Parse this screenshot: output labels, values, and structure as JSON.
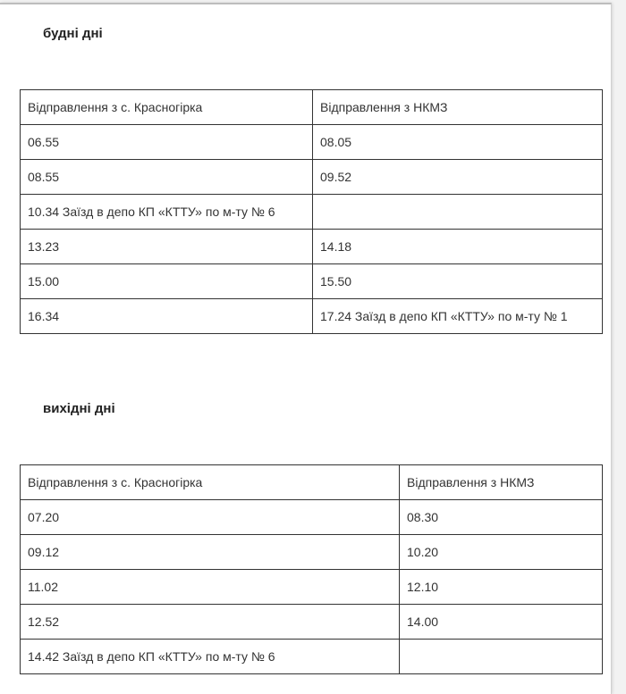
{
  "weekdays": {
    "title": "будні дні",
    "headers": [
      "Відправлення з с. Красногірка",
      "Відправлення з НКМЗ"
    ],
    "rows": [
      [
        "06.55",
        "08.05"
      ],
      [
        "08.55",
        "09.52"
      ],
      [
        "10.34 Заїзд в депо КП «КТТУ» по м-ту № 6",
        ""
      ],
      [
        "13.23",
        "14.18"
      ],
      [
        "15.00",
        "15.50"
      ],
      [
        "16.34",
        "17.24 Заїзд в депо КП «КТТУ» по м-ту № 1"
      ]
    ]
  },
  "weekends": {
    "title": "вихідні дні",
    "headers": [
      "Відправлення з с. Красногірка",
      "Відправлення з НКМЗ"
    ],
    "rows": [
      [
        "07.20",
        "08.30"
      ],
      [
        "09.12",
        "10.20"
      ],
      [
        "11.02",
        "12.10"
      ],
      [
        "12.52",
        "14.00"
      ],
      [
        "14.42 Заїзд в депо КП «КТТУ» по м-ту № 6",
        ""
      ]
    ]
  }
}
